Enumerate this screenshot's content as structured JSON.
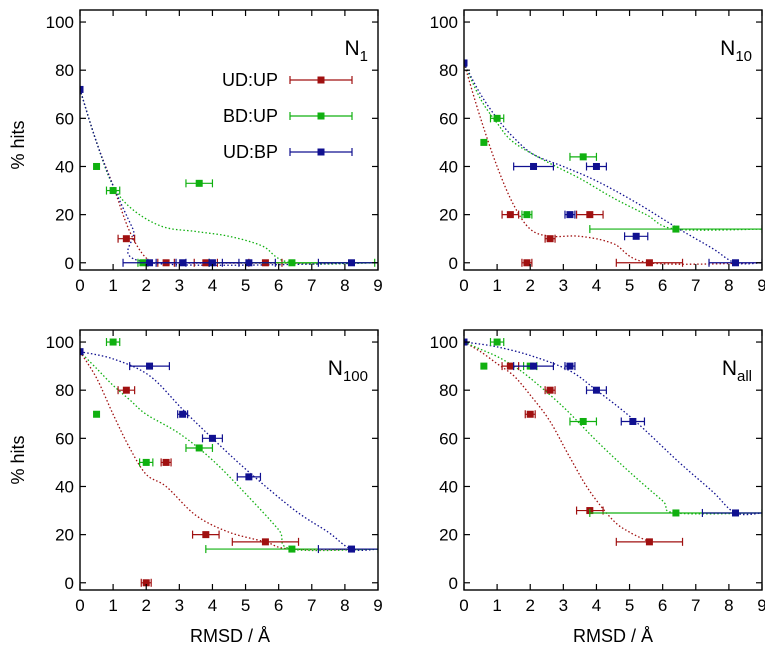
{
  "figure": {
    "xlabel": "RMSD / Å",
    "ylabel": "% hits"
  },
  "chart_data": [
    {
      "type": "scatter",
      "panel_label": "N",
      "panel_label_sub": "1",
      "xlim": [
        0,
        9
      ],
      "ylim": [
        -3,
        105
      ],
      "xticks": [
        0,
        1,
        2,
        3,
        4,
        5,
        6,
        7,
        8,
        9
      ],
      "yticks": [
        0,
        20,
        40,
        60,
        80,
        100
      ],
      "xlabel": "",
      "ylabel": "% hits",
      "legend": [
        {
          "name": "UD:UP",
          "color": "#a01010"
        },
        {
          "name": "BD:UP",
          "color": "#10b010"
        },
        {
          "name": "UD:BP",
          "color": "#101090"
        }
      ],
      "series": [
        {
          "name": "UD:UP",
          "color": "#a01010",
          "points": [
            {
              "x": 1.4,
              "y": 10,
              "xerr": 0.25
            },
            {
              "x": 2.6,
              "y": 0,
              "xerr": 0.25
            },
            {
              "x": 3.8,
              "y": 0,
              "xerr": 0.35
            },
            {
              "x": 5.6,
              "y": 0,
              "xerr": 0.5
            }
          ],
          "trend": [
            [
              0,
              72
            ],
            [
              0.5,
              50
            ],
            [
              1.0,
              32
            ],
            [
              1.5,
              13
            ],
            [
              2.0,
              2
            ],
            [
              2.5,
              0
            ],
            [
              9,
              0
            ]
          ]
        },
        {
          "name": "BD:UP",
          "color": "#10b010",
          "points": [
            {
              "x": 0.5,
              "y": 40,
              "xerr": 0
            },
            {
              "x": 1.0,
              "y": 30,
              "xerr": 0.2
            },
            {
              "x": 1.9,
              "y": 0,
              "xerr": 0.15
            },
            {
              "x": 3.6,
              "y": 33,
              "xerr": 0.4
            },
            {
              "x": 6.4,
              "y": 0,
              "xerr": 2.5
            }
          ],
          "trend": [
            [
              0,
              72
            ],
            [
              0.5,
              50
            ],
            [
              1.0,
              32
            ],
            [
              1.6,
              22
            ],
            [
              2.5,
              15
            ],
            [
              3.5,
              13
            ],
            [
              4.5,
              11
            ],
            [
              5.5,
              7
            ],
            [
              6.4,
              0
            ],
            [
              9,
              0
            ]
          ]
        },
        {
          "name": "UD:BP",
          "color": "#101090",
          "points": [
            {
              "x": 0,
              "y": 72,
              "xerr": 0
            },
            {
              "x": 2.1,
              "y": 0,
              "xerr": 0.8
            },
            {
              "x": 3.1,
              "y": 0,
              "xerr": 0.8
            },
            {
              "x": 4.0,
              "y": 0,
              "xerr": 0.8
            },
            {
              "x": 5.1,
              "y": 0,
              "xerr": 0.8
            },
            {
              "x": 8.2,
              "y": 0,
              "xerr": 1.0
            }
          ],
          "trend": [
            [
              0,
              72
            ],
            [
              0.5,
              50
            ],
            [
              1.0,
              32
            ],
            [
              1.6,
              14
            ],
            [
              2.1,
              0
            ],
            [
              9,
              0
            ]
          ]
        }
      ]
    },
    {
      "type": "scatter",
      "panel_label": "N",
      "panel_label_sub": "10",
      "xlim": [
        0,
        9
      ],
      "ylim": [
        -3,
        105
      ],
      "xticks": [
        0,
        1,
        2,
        3,
        4,
        5,
        6,
        7,
        8,
        9
      ],
      "yticks": [
        0,
        20,
        40,
        60,
        80,
        100
      ],
      "xlabel": "",
      "ylabel": "",
      "series": [
        {
          "name": "UD:UP",
          "color": "#a01010",
          "points": [
            {
              "x": 1.4,
              "y": 20,
              "xerr": 0.25
            },
            {
              "x": 1.9,
              "y": 0,
              "xerr": 0.15
            },
            {
              "x": 2.6,
              "y": 10,
              "xerr": 0.15
            },
            {
              "x": 3.8,
              "y": 20,
              "xerr": 0.4
            },
            {
              "x": 5.6,
              "y": 0,
              "xerr": 1.0
            }
          ],
          "trend": [
            [
              0,
              83
            ],
            [
              0.5,
              60
            ],
            [
              1.0,
              40
            ],
            [
              1.5,
              24
            ],
            [
              2.0,
              14
            ],
            [
              2.6,
              11
            ],
            [
              3.5,
              11
            ],
            [
              4.5,
              8
            ],
            [
              5.6,
              0
            ],
            [
              9,
              0
            ]
          ]
        },
        {
          "name": "BD:UP",
          "color": "#10b010",
          "points": [
            {
              "x": 0.6,
              "y": 50,
              "xerr": 0
            },
            {
              "x": 1.0,
              "y": 60,
              "xerr": 0.2
            },
            {
              "x": 1.9,
              "y": 20,
              "xerr": 0.15
            },
            {
              "x": 3.6,
              "y": 44,
              "xerr": 0.4
            },
            {
              "x": 6.4,
              "y": 14,
              "xerr": 2.6
            }
          ],
          "trend": [
            [
              0,
              83
            ],
            [
              0.5,
              68
            ],
            [
              1.0,
              58
            ],
            [
              1.5,
              50
            ],
            [
              2.5,
              42
            ],
            [
              3.5,
              35
            ],
            [
              4.5,
              27
            ],
            [
              5.5,
              20
            ],
            [
              6.4,
              14
            ],
            [
              9,
              14
            ]
          ]
        },
        {
          "name": "UD:BP",
          "color": "#101090",
          "points": [
            {
              "x": 0,
              "y": 83,
              "xerr": 0
            },
            {
              "x": 2.1,
              "y": 40,
              "xerr": 0.6
            },
            {
              "x": 3.2,
              "y": 20,
              "xerr": 0.15
            },
            {
              "x": 4.0,
              "y": 40,
              "xerr": 0.3
            },
            {
              "x": 5.2,
              "y": 11,
              "xerr": 0.35
            },
            {
              "x": 8.2,
              "y": 0,
              "xerr": 0.8
            }
          ],
          "trend": [
            [
              0,
              83
            ],
            [
              0.5,
              70
            ],
            [
              1.0,
              60
            ],
            [
              1.5,
              52
            ],
            [
              2.1,
              45
            ],
            [
              3.0,
              40
            ],
            [
              4.0,
              34
            ],
            [
              5.2,
              25
            ],
            [
              6.5,
              14
            ],
            [
              7.5,
              6
            ],
            [
              8.2,
              0
            ],
            [
              9,
              0
            ]
          ]
        }
      ]
    },
    {
      "type": "scatter",
      "panel_label": "N",
      "panel_label_sub": "100",
      "xlim": [
        0,
        9
      ],
      "ylim": [
        -3,
        105
      ],
      "xticks": [
        0,
        1,
        2,
        3,
        4,
        5,
        6,
        7,
        8,
        9
      ],
      "yticks": [
        0,
        20,
        40,
        60,
        80,
        100
      ],
      "xlabel": "RMSD / Å",
      "ylabel": "% hits",
      "series": [
        {
          "name": "UD:UP",
          "color": "#a01010",
          "points": [
            {
              "x": 1.4,
              "y": 80,
              "xerr": 0.25
            },
            {
              "x": 2.0,
              "y": 0,
              "xerr": 0.15
            },
            {
              "x": 2.6,
              "y": 50,
              "xerr": 0.15
            },
            {
              "x": 3.8,
              "y": 20,
              "xerr": 0.4
            },
            {
              "x": 5.6,
              "y": 17,
              "xerr": 1.0
            }
          ],
          "trend": [
            [
              0,
              96
            ],
            [
              0.5,
              85
            ],
            [
              1.0,
              70
            ],
            [
              1.5,
              56
            ],
            [
              2.0,
              45
            ],
            [
              2.6,
              40
            ],
            [
              3.5,
              28
            ],
            [
              4.5,
              21
            ],
            [
              5.6,
              17
            ],
            [
              6.4,
              14
            ],
            [
              9,
              14
            ]
          ]
        },
        {
          "name": "BD:UP",
          "color": "#10b010",
          "points": [
            {
              "x": 0.5,
              "y": 70,
              "xerr": 0
            },
            {
              "x": 1.0,
              "y": 100,
              "xerr": 0.2
            },
            {
              "x": 2.0,
              "y": 50,
              "xerr": 0.2
            },
            {
              "x": 3.6,
              "y": 56,
              "xerr": 0.4
            },
            {
              "x": 6.4,
              "y": 14,
              "xerr": 2.6
            }
          ],
          "trend": [
            [
              0,
              96
            ],
            [
              0.5,
              89
            ],
            [
              1.0,
              82
            ],
            [
              1.5,
              76
            ],
            [
              2.0,
              70
            ],
            [
              3.0,
              62
            ],
            [
              4.0,
              51
            ],
            [
              5.0,
              37
            ],
            [
              6.0,
              22
            ],
            [
              6.4,
              14
            ],
            [
              9,
              14
            ]
          ]
        },
        {
          "name": "UD:BP",
          "color": "#101090",
          "points": [
            {
              "x": 0,
              "y": 96,
              "xerr": 0
            },
            {
              "x": 2.1,
              "y": 90,
              "xerr": 0.6
            },
            {
              "x": 3.1,
              "y": 70,
              "xerr": 0.15
            },
            {
              "x": 4.0,
              "y": 60,
              "xerr": 0.3
            },
            {
              "x": 5.1,
              "y": 44,
              "xerr": 0.35
            },
            {
              "x": 8.2,
              "y": 14,
              "xerr": 1.0
            }
          ],
          "trend": [
            [
              0,
              96
            ],
            [
              1.0,
              93
            ],
            [
              2.1,
              86
            ],
            [
              3.1,
              72
            ],
            [
              4.0,
              60
            ],
            [
              5.1,
              46
            ],
            [
              6.5,
              30
            ],
            [
              7.5,
              21
            ],
            [
              8.2,
              14
            ],
            [
              9,
              14
            ]
          ]
        }
      ]
    },
    {
      "type": "scatter",
      "panel_label": "N",
      "panel_label_sub": "all",
      "xlim": [
        0,
        9
      ],
      "ylim": [
        -3,
        105
      ],
      "xticks": [
        0,
        1,
        2,
        3,
        4,
        5,
        6,
        7,
        8,
        9
      ],
      "yticks": [
        0,
        20,
        40,
        60,
        80,
        100
      ],
      "xlabel": "RMSD / Å",
      "ylabel": "",
      "series": [
        {
          "name": "UD:UP",
          "color": "#a01010",
          "points": [
            {
              "x": 1.4,
              "y": 90,
              "xerr": 0.25
            },
            {
              "x": 2.0,
              "y": 70,
              "xerr": 0.15
            },
            {
              "x": 2.6,
              "y": 80,
              "xerr": 0.15
            },
            {
              "x": 3.8,
              "y": 30,
              "xerr": 0.4
            },
            {
              "x": 5.6,
              "y": 17,
              "xerr": 1.0
            }
          ],
          "trend": [
            [
              0,
              100
            ],
            [
              0.5,
              96
            ],
            [
              1.0,
              91
            ],
            [
              1.5,
              86
            ],
            [
              2.0,
              78
            ],
            [
              2.6,
              67
            ],
            [
              3.2,
              52
            ],
            [
              3.8,
              38
            ],
            [
              4.5,
              26
            ],
            [
              5.0,
              21
            ],
            [
              5.6,
              17
            ]
          ]
        },
        {
          "name": "BD:UP",
          "color": "#10b010",
          "points": [
            {
              "x": 0.6,
              "y": 90,
              "xerr": 0
            },
            {
              "x": 1.0,
              "y": 100,
              "xerr": 0.2
            },
            {
              "x": 2.0,
              "y": 90,
              "xerr": 0.2
            },
            {
              "x": 3.6,
              "y": 67,
              "xerr": 0.4
            },
            {
              "x": 6.4,
              "y": 29,
              "xerr": 2.6
            }
          ],
          "trend": [
            [
              0,
              100
            ],
            [
              0.5,
              97
            ],
            [
              1.0,
              94
            ],
            [
              1.5,
              90
            ],
            [
              2.0,
              85
            ],
            [
              3.0,
              73
            ],
            [
              4.0,
              59
            ],
            [
              5.0,
              46
            ],
            [
              6.0,
              34
            ],
            [
              6.4,
              29
            ],
            [
              9,
              29
            ]
          ]
        },
        {
          "name": "UD:BP",
          "color": "#101090",
          "points": [
            {
              "x": 0,
              "y": 100,
              "xerr": 0
            },
            {
              "x": 2.1,
              "y": 90,
              "xerr": 0.6
            },
            {
              "x": 3.2,
              "y": 90,
              "xerr": 0.15
            },
            {
              "x": 4.0,
              "y": 80,
              "xerr": 0.3
            },
            {
              "x": 5.1,
              "y": 67,
              "xerr": 0.35
            },
            {
              "x": 8.2,
              "y": 29,
              "xerr": 1.0
            }
          ],
          "trend": [
            [
              0,
              100
            ],
            [
              1.0,
              98
            ],
            [
              2.1,
              94
            ],
            [
              3.2,
              88
            ],
            [
              4.0,
              80
            ],
            [
              5.1,
              68
            ],
            [
              6.5,
              50
            ],
            [
              7.5,
              38
            ],
            [
              8.2,
              29
            ],
            [
              9,
              29
            ]
          ]
        }
      ]
    }
  ]
}
